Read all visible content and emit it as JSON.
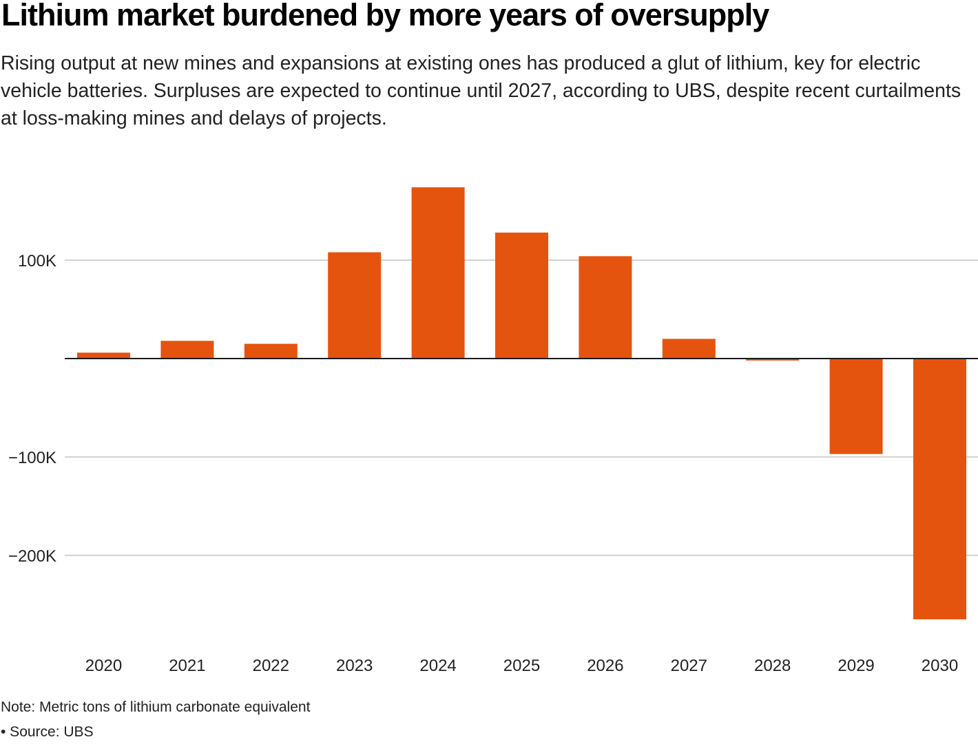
{
  "title": "Lithium market burdened by more years of oversupply",
  "subtitle": "Rising output at new mines and expansions at existing ones has produced a glut of lithium, key for electric vehicle batteries. Surpluses are expected to continue until 2027, according to UBS, despite recent curtailments at loss-making mines and delays of projects.",
  "note": "Note: Metric tons of lithium carbonate equivalent",
  "source": "• Source: UBS",
  "chart_data": {
    "type": "bar",
    "title": "Lithium market burdened by more years of oversupply",
    "xlabel": "",
    "ylabel": "",
    "categories": [
      "2020",
      "2021",
      "2022",
      "2023",
      "2024",
      "2025",
      "2026",
      "2027",
      "2028",
      "2029",
      "2030"
    ],
    "values": [
      6000,
      18000,
      15000,
      108000,
      174000,
      128000,
      104000,
      20000,
      -2000,
      -97000,
      -265000
    ],
    "ylim": [
      -280000,
      190000
    ],
    "yticks": [
      100000,
      0,
      -100000,
      -200000
    ],
    "ytick_labels": [
      "100K",
      "",
      "−100K",
      "−200K"
    ],
    "grid": true,
    "bar_color": "#e5540f"
  }
}
